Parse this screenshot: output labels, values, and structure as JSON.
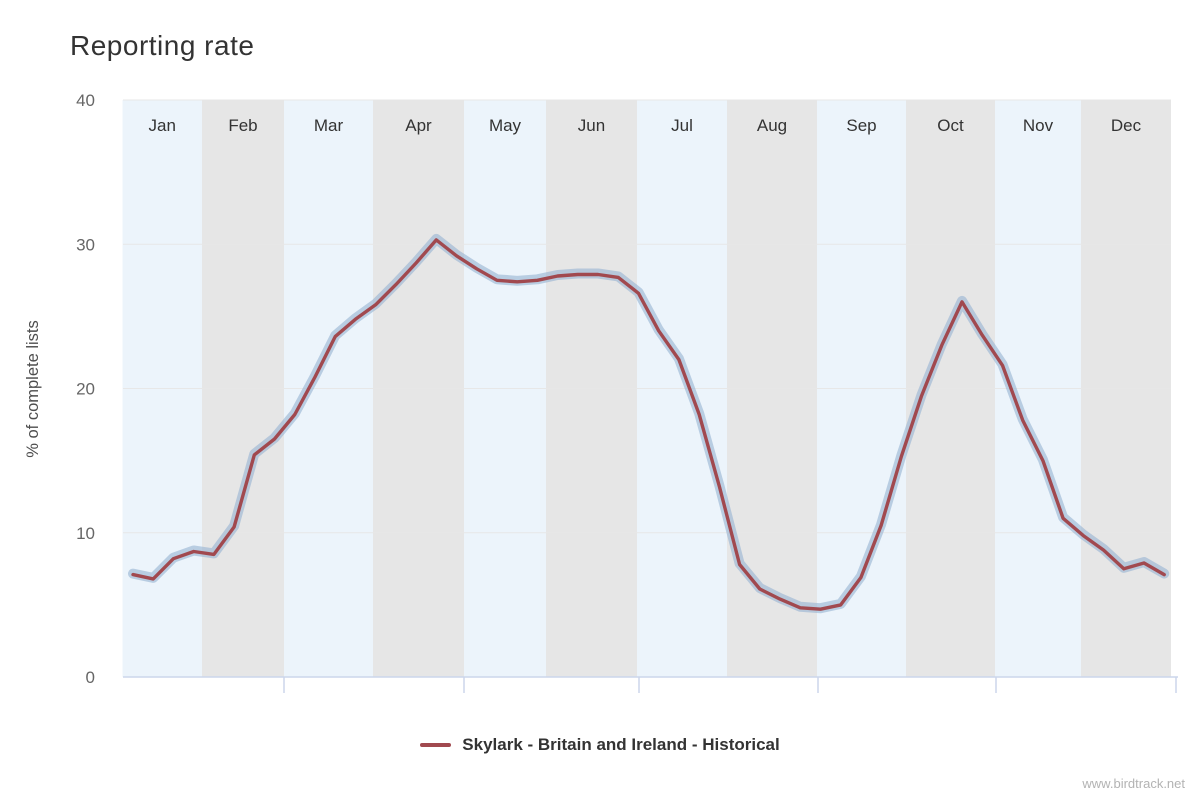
{
  "watermark": "www.birdtrack.net",
  "chart_data": {
    "type": "line",
    "title": "Reporting rate",
    "xlabel": "",
    "ylabel": "% of complete lists",
    "ylim": [
      0,
      40
    ],
    "yticks": [
      0,
      10,
      20,
      30,
      40
    ],
    "x_unit": "week of year (1-52)",
    "months": [
      "Jan",
      "Feb",
      "Mar",
      "Apr",
      "May",
      "Jun",
      "Jul",
      "Aug",
      "Sep",
      "Oct",
      "Nov",
      "Dec"
    ],
    "grid": "horizontal gridlines at 10,20,30,40",
    "legend_position": "bottom center",
    "series": [
      {
        "name": "Skylark - Britain and Ireland - Historical",
        "color": "#a1494f",
        "confidence_band_color": "rgba(150,178,210,0.6)",
        "x_weeks": [
          1,
          2,
          3,
          4,
          5,
          6,
          7,
          8,
          9,
          10,
          11,
          12,
          13,
          14,
          15,
          16,
          17,
          18,
          19,
          20,
          21,
          22,
          23,
          24,
          25,
          26,
          27,
          28,
          29,
          30,
          31,
          32,
          33,
          34,
          35,
          36,
          37,
          38,
          39,
          40,
          41,
          42,
          43,
          44,
          45,
          46,
          47,
          48,
          49,
          50,
          51,
          52
        ],
        "values": [
          7.1,
          6.8,
          8.2,
          8.7,
          8.5,
          10.4,
          15.4,
          16.5,
          18.2,
          20.8,
          23.6,
          24.8,
          25.8,
          27.2,
          28.7,
          30.3,
          29.2,
          28.3,
          27.5,
          27.4,
          27.5,
          27.8,
          27.9,
          27.9,
          27.7,
          26.6,
          24.0,
          22.0,
          18.2,
          13.2,
          7.8,
          6.1,
          5.4,
          4.8,
          4.7,
          5.0,
          6.9,
          10.5,
          15.3,
          19.5,
          23.0,
          26.0,
          23.7,
          21.6,
          17.8,
          15.0,
          11.0,
          9.8,
          8.8,
          7.5,
          7.9,
          7.1
        ]
      }
    ],
    "style": {
      "band_color_odd_months": "#ecf4fb",
      "band_color_even_months": "#e6e6e6",
      "gridline_color": "#e7e7e7",
      "axis_line_color": "#ccd6eb",
      "month_label_color": "#333333",
      "ytick_label_color": "#666666"
    }
  }
}
